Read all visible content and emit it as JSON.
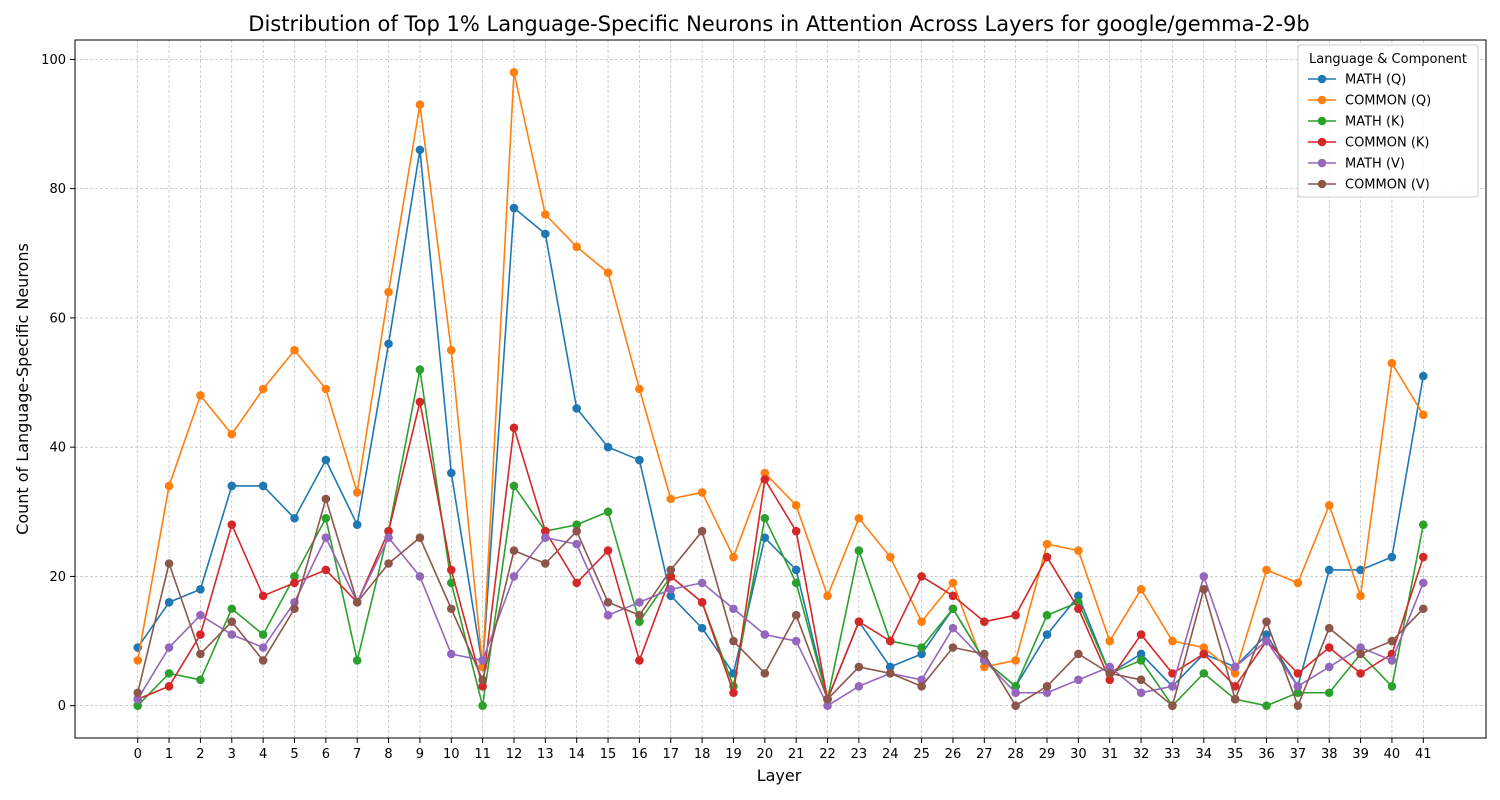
{
  "chart_data": {
    "type": "line",
    "title": "Distribution of Top 1% Language-Specific Neurons in Attention Across Layers for google/gemma-2-9b",
    "xlabel": "Layer",
    "ylabel": "Count of Language-Specific Neurons",
    "x": [
      0,
      1,
      2,
      3,
      4,
      5,
      6,
      7,
      8,
      9,
      10,
      11,
      12,
      13,
      14,
      15,
      16,
      17,
      18,
      19,
      20,
      21,
      22,
      23,
      24,
      25,
      26,
      27,
      28,
      29,
      30,
      31,
      32,
      33,
      34,
      35,
      36,
      37,
      38,
      39,
      40,
      41
    ],
    "ylim": [
      -5,
      103
    ],
    "yticks": [
      0,
      20,
      40,
      60,
      80,
      100
    ],
    "grid": true,
    "legend": {
      "title": "Language & Component",
      "placement": "top-right"
    },
    "series": [
      {
        "name": "MATH (Q)",
        "color": "#1f77b4",
        "values": [
          9,
          16,
          18,
          34,
          34,
          29,
          38,
          28,
          56,
          86,
          36,
          6,
          77,
          73,
          46,
          40,
          38,
          17,
          12,
          5,
          26,
          21,
          1,
          13,
          6,
          8,
          15,
          7,
          3,
          11,
          17,
          5,
          8,
          3,
          8,
          6,
          11,
          3,
          21,
          21,
          23,
          51
        ]
      },
      {
        "name": "COMMON (Q)",
        "color": "#ff7f0e",
        "values": [
          7,
          34,
          48,
          42,
          49,
          55,
          49,
          33,
          64,
          93,
          55,
          6,
          98,
          76,
          71,
          67,
          49,
          32,
          33,
          23,
          36,
          31,
          17,
          29,
          23,
          13,
          19,
          6,
          7,
          25,
          24,
          10,
          18,
          10,
          9,
          5,
          21,
          19,
          31,
          17,
          53,
          45
        ]
      },
      {
        "name": "MATH (K)",
        "color": "#2ca02c",
        "values": [
          0,
          5,
          4,
          15,
          11,
          20,
          29,
          7,
          27,
          52,
          19,
          0,
          34,
          27,
          28,
          30,
          13,
          20,
          16,
          3,
          29,
          19,
          1,
          24,
          10,
          9,
          15,
          7,
          3,
          14,
          16,
          5,
          7,
          0,
          5,
          1,
          0,
          2,
          2,
          8,
          3,
          28
        ]
      },
      {
        "name": "COMMON (K)",
        "color": "#d62728",
        "values": [
          1,
          3,
          11,
          28,
          17,
          19,
          21,
          16,
          27,
          47,
          21,
          3,
          43,
          27,
          19,
          24,
          7,
          20,
          16,
          2,
          35,
          27,
          1,
          13,
          10,
          20,
          17,
          13,
          14,
          23,
          15,
          4,
          11,
          5,
          8,
          3,
          10,
          5,
          9,
          5,
          8,
          23
        ]
      },
      {
        "name": "MATH (V)",
        "color": "#9467bd",
        "values": [
          1,
          9,
          14,
          11,
          9,
          16,
          26,
          16,
          26,
          20,
          8,
          7,
          20,
          26,
          25,
          14,
          16,
          18,
          19,
          15,
          11,
          10,
          0,
          3,
          5,
          4,
          12,
          7,
          2,
          2,
          4,
          6,
          2,
          3,
          20,
          6,
          10,
          3,
          6,
          9,
          7,
          19
        ]
      },
      {
        "name": "COMMON (V)",
        "color": "#8c564b",
        "values": [
          2,
          22,
          8,
          13,
          7,
          15,
          32,
          16,
          22,
          26,
          15,
          4,
          24,
          22,
          27,
          16,
          14,
          21,
          27,
          10,
          5,
          14,
          1,
          6,
          5,
          3,
          9,
          8,
          0,
          3,
          8,
          5,
          4,
          0,
          18,
          1,
          13,
          0,
          12,
          8,
          10,
          15
        ]
      }
    ]
  }
}
